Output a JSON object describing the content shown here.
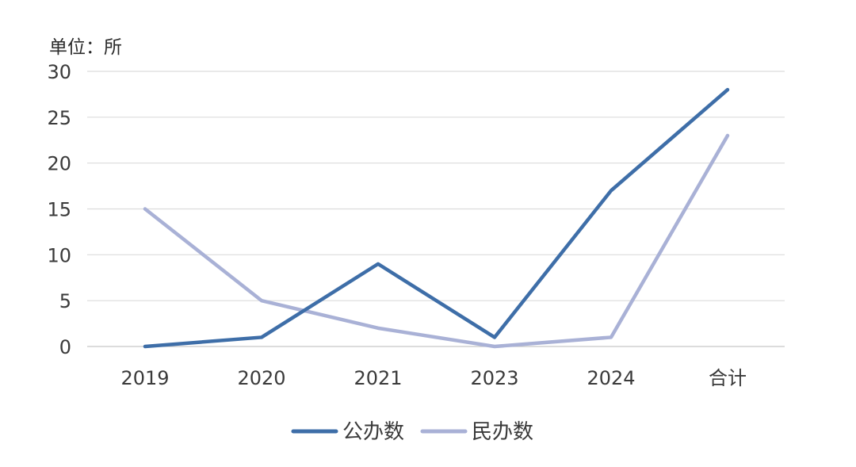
{
  "chart_data": {
    "type": "line",
    "unit_label": "单位：所",
    "categories": [
      "2019",
      "2020",
      "2021",
      "2023",
      "2024",
      "合计"
    ],
    "ylim": [
      0,
      30
    ],
    "yticks": [
      0,
      5,
      10,
      15,
      20,
      25,
      30
    ],
    "grid": true,
    "legend_position": "bottom",
    "series": [
      {
        "name": "公办数",
        "values": [
          0,
          1,
          9,
          1,
          17,
          28
        ],
        "color": "#3e6ea8"
      },
      {
        "name": "民办数",
        "values": [
          15,
          5,
          2,
          0,
          1,
          23
        ],
        "color": "#a9b1d6"
      }
    ]
  }
}
